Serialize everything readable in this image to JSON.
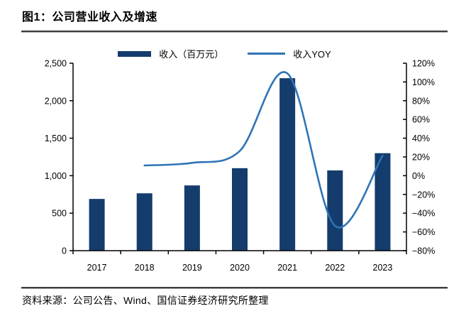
{
  "title": "图1：公司营业收入及增速",
  "source": "资料来源：公司公告、Wind、国信证券经济研究所整理",
  "colors": {
    "bar": "#143c6c",
    "line": "#2e74b5",
    "axis": "#000000",
    "rule": "#3d3d3d"
  },
  "chart_data": {
    "type": "bar",
    "title": "公司营业收入及增速",
    "categories": [
      "2017",
      "2018",
      "2019",
      "2020",
      "2021",
      "2022",
      "2023"
    ],
    "series": [
      {
        "name": "收入（百万元）",
        "type": "bar",
        "axis": "left",
        "values": [
          690,
          765,
          870,
          1100,
          2300,
          1070,
          1300
        ]
      },
      {
        "name": "收入YOY",
        "type": "line",
        "axis": "right",
        "x": [
          "2018",
          "2019",
          "2020",
          "2021",
          "2022",
          "2023"
        ],
        "values_pct": [
          10.9,
          13.7,
          26.4,
          109.1,
          -53.5,
          21.5
        ]
      }
    ],
    "left_axis": {
      "min": 0,
      "max": 2500,
      "step": 500,
      "tick_labels": [
        "0",
        "500",
        "1,000",
        "1,500",
        "2,000",
        "2,500"
      ]
    },
    "right_axis": {
      "min": -80,
      "max": 120,
      "step": 20,
      "tick_labels": [
        "−80%",
        "−60%",
        "−40%",
        "−20%",
        "0%",
        "20%",
        "40%",
        "60%",
        "80%",
        "100%",
        "120%"
      ]
    },
    "grid": false,
    "legend_position": "top"
  }
}
